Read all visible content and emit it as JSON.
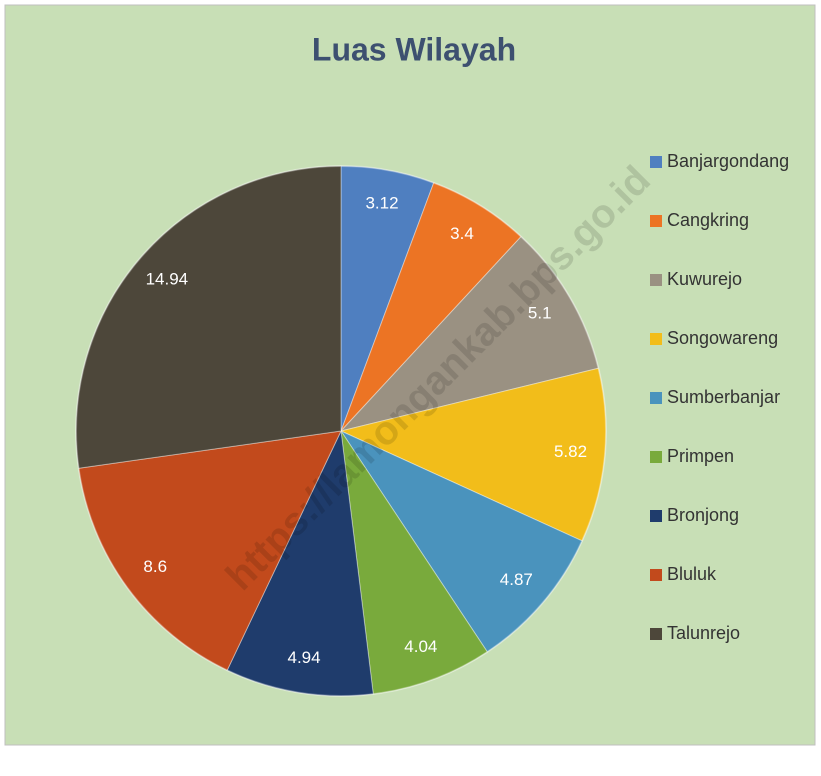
{
  "chart_data": {
    "type": "pie",
    "title": "Luas Wilayah",
    "watermark": "https://lamongankab.bps.go.id",
    "categories": [
      "Banjargondang",
      "Cangkring",
      "Kuwurejo",
      "Songowareng",
      "Sumberbanjar",
      "Primpen",
      "Bronjong",
      "Bluluk",
      "Talunrejo"
    ],
    "values": [
      3.12,
      3.4,
      5.1,
      5.82,
      4.87,
      4.04,
      4.94,
      8.6,
      14.94
    ],
    "colors": [
      "#4f7fc0",
      "#ec7424",
      "#9a9182",
      "#f2bd1a",
      "#4a93bd",
      "#79aa3c",
      "#1f3c6c",
      "#c24a1c",
      "#4d473a"
    ],
    "legend": "right"
  }
}
